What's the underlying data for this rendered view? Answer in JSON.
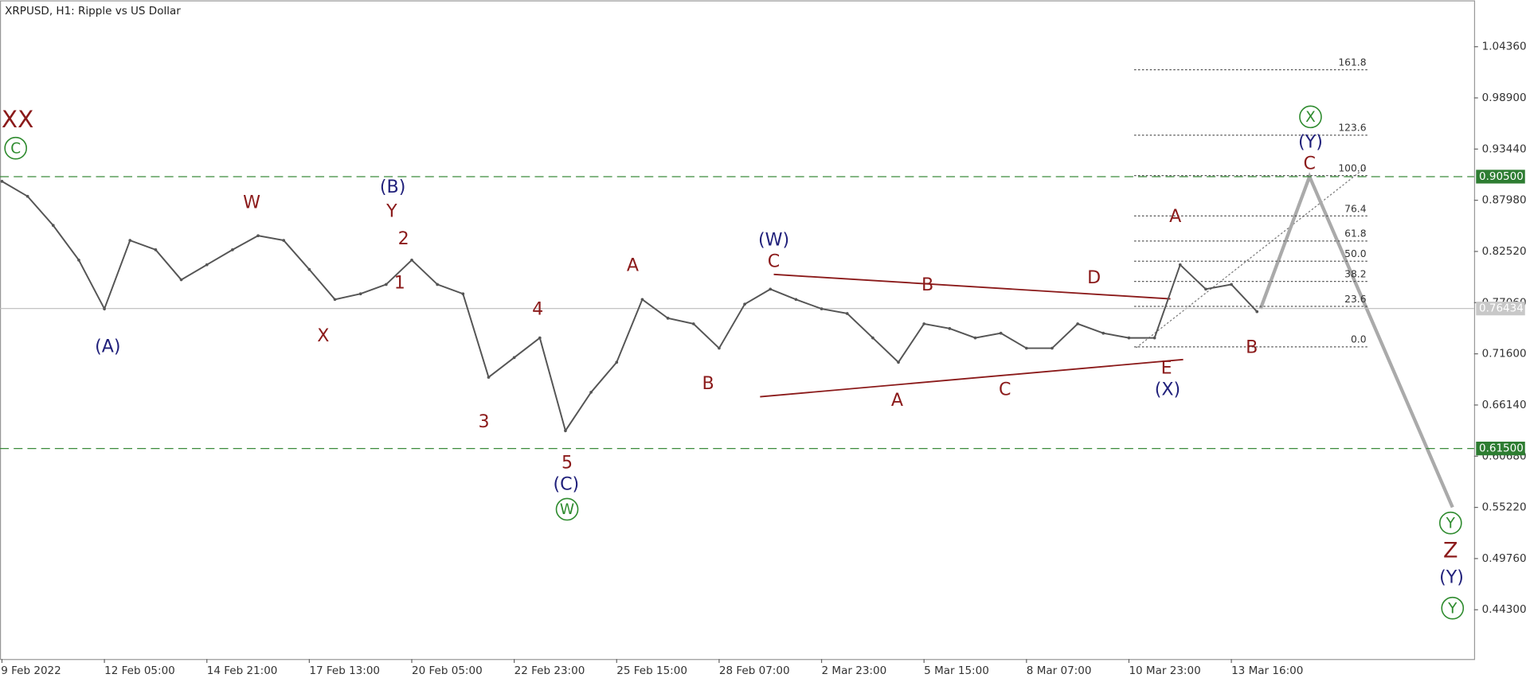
{
  "chart_data": {
    "type": "line",
    "title": "XRPUSD, H1:  Ripple vs US Dollar",
    "categories": [
      "9 Feb 2022",
      null,
      null,
      null,
      "12 Feb 05:00",
      null,
      null,
      null,
      "14 Feb 21:00",
      null,
      null,
      null,
      "17 Feb 13:00",
      null,
      null,
      null,
      "20 Feb 05:00",
      null,
      null,
      null,
      "22 Feb 23:00",
      null,
      null,
      null,
      "25 Feb 15:00",
      null,
      null,
      null,
      "28 Feb 07:00",
      null,
      null,
      null,
      "2 Mar 23:00",
      null,
      null,
      null,
      "5 Mar 15:00",
      null,
      null,
      null,
      "8 Mar 07:00",
      null,
      null,
      null,
      "10 Mar 23:00",
      null,
      null,
      null,
      "13 Mar 16:00",
      null
    ],
    "values": [
      0.9,
      0.884,
      0.853,
      0.816,
      0.764,
      0.837,
      0.827,
      0.795,
      0.811,
      0.827,
      0.842,
      0.837,
      0.806,
      0.774,
      0.78,
      0.79,
      0.816,
      0.79,
      0.78,
      0.691,
      0.712,
      0.733,
      0.634,
      0.675,
      0.707,
      0.774,
      0.754,
      0.748,
      0.722,
      0.769,
      0.785,
      0.774,
      0.764,
      0.759,
      0.733,
      0.707,
      0.748,
      0.743,
      0.733,
      0.738,
      0.722,
      0.722,
      0.748,
      0.738,
      0.733,
      0.733,
      0.811,
      0.785,
      0.79,
      0.761
    ],
    "color": "#555555",
    "ylim": [
      0.3915,
      1.093
    ],
    "yticks": [
      {
        "value": 1.0436,
        "label": "1.04360"
      },
      {
        "value": 0.989,
        "label": "0.98900"
      },
      {
        "value": 0.9344,
        "label": "0.93440"
      },
      {
        "value": 0.8798,
        "label": "0.87980"
      },
      {
        "value": 0.8252,
        "label": "0.82520"
      },
      {
        "value": 0.7706,
        "label": "0.77060"
      },
      {
        "value": 0.716,
        "label": "0.71600"
      },
      {
        "value": 0.6614,
        "label": "0.66140"
      },
      {
        "value": 0.6068,
        "label": "0.60680"
      },
      {
        "value": 0.5522,
        "label": "0.55220"
      },
      {
        "value": 0.4976,
        "label": "0.49760"
      },
      {
        "value": 0.443,
        "label": "0.44300"
      }
    ],
    "price_levels": [
      {
        "value": 0.905,
        "label": "0.90500"
      },
      {
        "value": 0.615,
        "label": "0.61500"
      }
    ],
    "current_price": {
      "value": 0.76434,
      "label": "0.76434"
    },
    "fibonacci_levels": [
      161.8,
      123.6,
      {
        "value": 100,
        "label": "100.0"
      },
      76.4,
      61.8,
      {
        "value": 50,
        "label": "50.0"
      },
      38.2,
      23.6,
      {
        "value": 0,
        "label": "0.0"
      }
    ],
    "wave_labels": [
      {
        "text": "XX",
        "color": "#8b1a1a"
      },
      {
        "text": "C",
        "color": "#2e8b2e",
        "circled": true
      },
      {
        "text": "(A)",
        "color": "#1f1f7a"
      },
      {
        "text": "W",
        "color": "#8b1a1a"
      },
      {
        "text": "X",
        "color": "#8b1a1a"
      },
      {
        "text": "(B)",
        "color": "#1f1f7a"
      },
      {
        "text": "Y",
        "color": "#8b1a1a"
      },
      {
        "text": "2",
        "color": "#8b1a1a"
      },
      {
        "text": "1",
        "color": "#8b1a1a"
      },
      {
        "text": "4",
        "color": "#8b1a1a"
      },
      {
        "text": "3",
        "color": "#8b1a1a"
      },
      {
        "text": "5",
        "color": "#8b1a1a"
      },
      {
        "text": "(C)",
        "color": "#1f1f7a"
      },
      {
        "text": "W",
        "color": "#2e8b2e",
        "circled": true
      },
      {
        "text": "A",
        "color": "#8b1a1a"
      },
      {
        "text": "B",
        "color": "#8b1a1a"
      },
      {
        "text": "(W)",
        "color": "#1f1f7a"
      },
      {
        "text": "C",
        "color": "#8b1a1a"
      },
      {
        "text": "B",
        "color": "#8b1a1a"
      },
      {
        "text": "A",
        "color": "#8b1a1a"
      },
      {
        "text": "C",
        "color": "#8b1a1a"
      },
      {
        "text": "D",
        "color": "#8b1a1a"
      },
      {
        "text": "E",
        "color": "#8b1a1a"
      },
      {
        "text": "(X)",
        "color": "#1f1f7a"
      },
      {
        "text": "A",
        "color": "#8b1a1a"
      },
      {
        "text": "B",
        "color": "#8b1a1a"
      },
      {
        "text": "X",
        "color": "#2e8b2e",
        "circled": true
      },
      {
        "text": "(Y)",
        "color": "#1f1f7a"
      },
      {
        "text": "C",
        "color": "#8b1a1a"
      },
      {
        "text": "Y",
        "color": "#2e8b2e",
        "circled": true
      },
      {
        "text": "Z",
        "color": "#8b1a1a"
      },
      {
        "text": "(Y)",
        "color": "#1f1f7a"
      },
      {
        "text": "Y",
        "color": "#2e8b2e",
        "circled": true
      }
    ]
  }
}
